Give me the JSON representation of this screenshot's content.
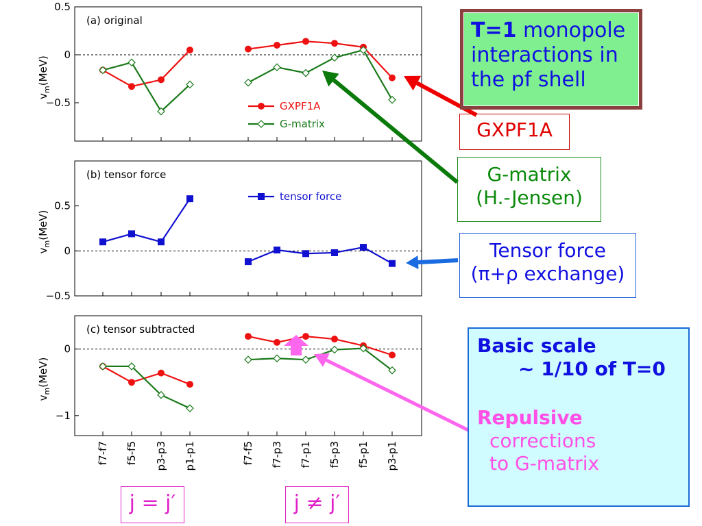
{
  "chart_data": [
    {
      "type": "line",
      "panel_label": "(a) original",
      "ylabel": "v_m(MeV)",
      "ylim": [
        -0.9,
        0.5
      ],
      "yticks": [
        {
          "v": 0.5,
          "t": "0.5"
        },
        {
          "v": 0,
          "t": "0"
        },
        {
          "v": -0.5,
          "t": "−0.5"
        }
      ],
      "series": [
        {
          "name": "GXPF1A",
          "color": "#ee1111",
          "marker": "circle",
          "left": [
            -0.16,
            -0.33,
            -0.26,
            0.05
          ],
          "right": [
            0.06,
            0.1,
            0.14,
            0.12,
            0.08,
            -0.24
          ]
        },
        {
          "name": "G-matrix",
          "color": "#1a7a1a",
          "marker": "diamond",
          "left": [
            -0.16,
            -0.08,
            -0.59,
            -0.31
          ],
          "right": [
            -0.29,
            -0.13,
            -0.19,
            -0.03,
            0.05,
            -0.47
          ]
        }
      ],
      "legend": "center-right"
    },
    {
      "type": "line",
      "panel_label": "(b) tensor force",
      "ylabel": "v_m(MeV)",
      "ylim": [
        -0.5,
        1.0
      ],
      "yticks": [
        {
          "v": 0.5,
          "t": "0.5"
        },
        {
          "v": 0,
          "t": "0"
        },
        {
          "v": -0.5,
          "t": "−0.5"
        }
      ],
      "series": [
        {
          "name": "tensor force",
          "color": "#1010d0",
          "marker": "square",
          "left": [
            0.1,
            0.19,
            0.1,
            0.58
          ],
          "right": [
            -0.12,
            0.01,
            -0.03,
            -0.02,
            0.04,
            -0.14
          ]
        }
      ],
      "legend": "top-center"
    },
    {
      "type": "line",
      "panel_label": "(c) tensor subtracted",
      "ylabel": "v_m(MeV)",
      "ylim": [
        -1.3,
        0.5
      ],
      "yticks": [
        {
          "v": 0,
          "t": "0"
        },
        {
          "v": -1,
          "t": "−1"
        }
      ],
      "series": [
        {
          "color": "#ee1111",
          "marker": "circle",
          "left": [
            -0.26,
            -0.5,
            -0.36,
            -0.53
          ],
          "right": [
            0.19,
            0.1,
            0.19,
            0.15,
            0.05,
            -0.09
          ]
        },
        {
          "color": "#1a7a1a",
          "marker": "diamond",
          "left": [
            -0.26,
            -0.26,
            -0.69,
            -0.89
          ],
          "right": [
            -0.16,
            -0.14,
            -0.16,
            -0.01,
            0.01,
            -0.32
          ]
        }
      ]
    }
  ],
  "x_categories_left": [
    "f7-f7",
    "f5-f5",
    "p3-p3",
    "p1-p1"
  ],
  "x_categories_right": [
    "f7-f5",
    "f7-p3",
    "f7-p1",
    "f5-p3",
    "f5-p1",
    "p3-p1"
  ],
  "annotations": {
    "title_bold": "T=1",
    "title_rest": " monopole interactions in the pf shell",
    "gxpf": "GXPF1A",
    "gmatrix_1": "G-matrix",
    "gmatrix_2": "(H.-Jensen)",
    "tensor_1": "Tensor force",
    "tensor_2": "(π+ρ exchange)",
    "basic_1": "Basic scale",
    "basic_2": "~ 1/10 of T=0",
    "repulsive": "Repulsive",
    "corrections_1": "corrections",
    "corrections_2": "to G-matrix",
    "j_eq": "j = j′",
    "j_neq": "j ≠ j′"
  },
  "colors": {
    "red": "#ee1111",
    "green": "#1a7a1a",
    "blue": "#1010d0",
    "arrow_red": "#ee0000",
    "arrow_green": "#0a7a0a",
    "arrow_blue": "#1a6ae0",
    "pink": "#ff66ee"
  }
}
